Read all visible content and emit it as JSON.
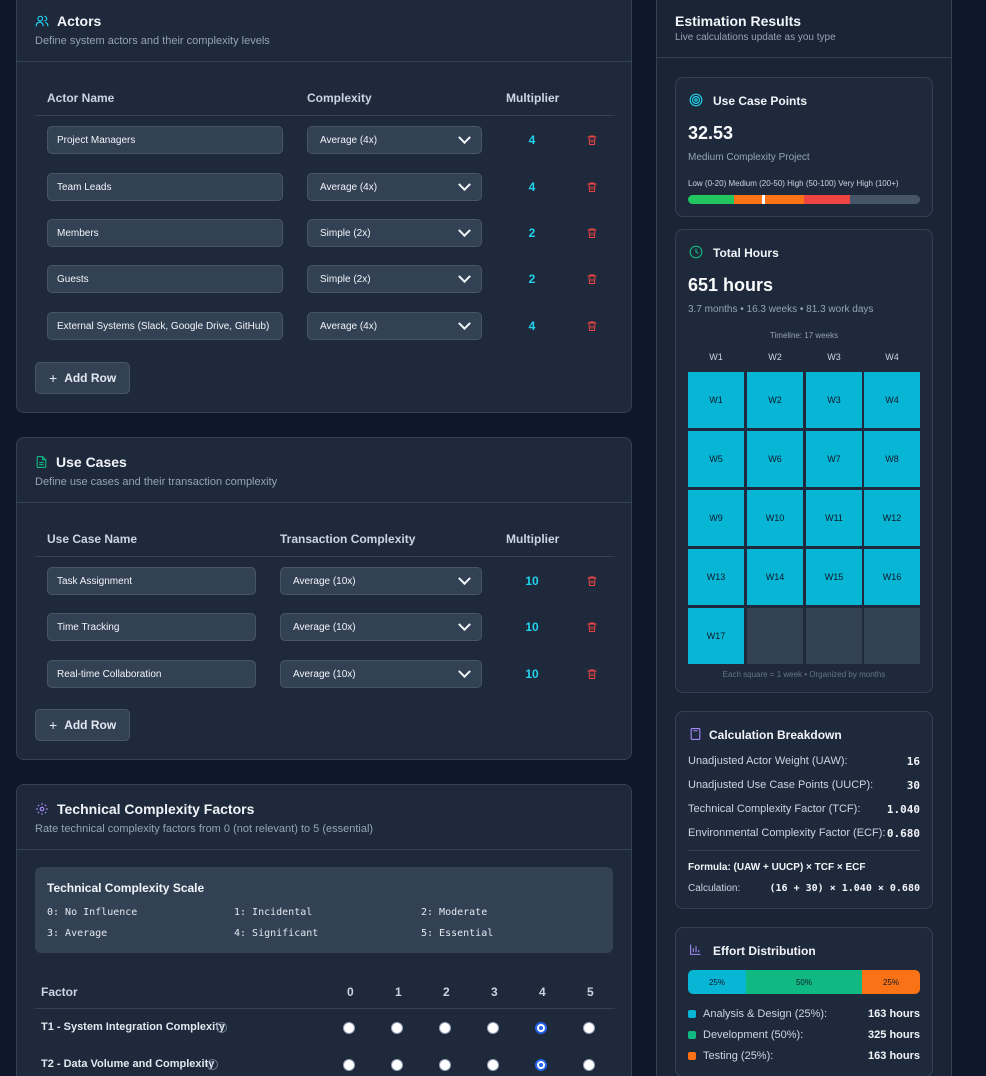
{
  "actors": {
    "title": "Actors",
    "subtitle": "Define system actors and their complexity levels",
    "headers": {
      "name": "Actor Name",
      "complexity": "Complexity",
      "multiplier": "Multiplier"
    },
    "rows": [
      {
        "name": "Project Managers",
        "complexity": "Average (4x)",
        "multiplier": "4"
      },
      {
        "name": "Team Leads",
        "complexity": "Average (4x)",
        "multiplier": "4"
      },
      {
        "name": "Members",
        "complexity": "Simple (2x)",
        "multiplier": "2"
      },
      {
        "name": "Guests",
        "complexity": "Simple (2x)",
        "multiplier": "2"
      },
      {
        "name": "External Systems (Slack, Google Drive, GitHub)",
        "complexity": "Average (4x)",
        "multiplier": "4"
      }
    ],
    "add_label": "Add Row"
  },
  "use_cases": {
    "title": "Use Cases",
    "subtitle": "Define use cases and their transaction complexity",
    "headers": {
      "name": "Use Case Name",
      "complexity": "Transaction Complexity",
      "multiplier": "Multiplier"
    },
    "rows": [
      {
        "name": "Task Assignment",
        "complexity": "Average (10x)",
        "multiplier": "10"
      },
      {
        "name": "Time Tracking",
        "complexity": "Average (10x)",
        "multiplier": "10"
      },
      {
        "name": "Real-time Collaboration",
        "complexity": "Average (10x)",
        "multiplier": "10"
      }
    ],
    "add_label": "Add Row"
  },
  "tcf": {
    "title": "Technical Complexity Factors",
    "subtitle": "Rate technical complexity factors from 0 (not relevant) to 5 (essential)",
    "scale_title": "Technical Complexity Scale",
    "scale": [
      "0: No Influence",
      "1: Incidental",
      "2: Moderate",
      "3: Average",
      "4: Significant",
      "5: Essential"
    ],
    "factor_header": "Factor",
    "columns": [
      "0",
      "1",
      "2",
      "3",
      "4",
      "5"
    ],
    "factors": [
      {
        "label": "T1 - System Integration Complexity",
        "selected": 4
      },
      {
        "label": "T2 - Data Volume and Complexity",
        "selected": 4
      }
    ]
  },
  "results": {
    "title": "Estimation Results",
    "subtitle": "Live calculations update as you type",
    "ucp": {
      "title": "Use Case Points",
      "value": "32.53",
      "label": "Medium Complexity Project",
      "legend": "Low (0-20) Medium (20-50) High (50-100) Very High (100+)",
      "marker_value": 32.53,
      "colors": {
        "low": "#22c55e",
        "medium": "#f97316",
        "high": "#ef4444",
        "very_high": "#475569"
      }
    },
    "hours": {
      "title": "Total Hours",
      "value": "651 hours",
      "detail": "3.7 months • 16.3 weeks • 81.3 work days",
      "timeline_label": "Timeline: 17 weeks",
      "col_headers": [
        "W1",
        "W2",
        "W3",
        "W4"
      ],
      "weeks": [
        "W1",
        "W2",
        "W3",
        "W4",
        "W5",
        "W6",
        "W7",
        "W8",
        "W9",
        "W10",
        "W11",
        "W12",
        "W13",
        "W14",
        "W15",
        "W16",
        "W17"
      ],
      "footnote": "Each square = 1 week • Organized by months"
    },
    "breakdown": {
      "title": "Calculation Breakdown",
      "rows": [
        {
          "label": "Unadjusted Actor Weight (UAW):",
          "value": "16"
        },
        {
          "label": "Unadjusted Use Case Points (UUCP):",
          "value": "30"
        },
        {
          "label": "Technical Complexity Factor (TCF):",
          "value": "1.040"
        },
        {
          "label": "Environmental Complexity Factor (ECF):",
          "value": "0.680"
        }
      ],
      "formula": "Formula: (UAW + UUCP) × TCF × ECF",
      "calc_label": "Calculation:",
      "calc_value": "(16 + 30) × 1.040 × 0.680"
    },
    "effort": {
      "title": "Effort Distribution",
      "segments": [
        {
          "label": "25%",
          "percent": 25,
          "color": "#06b6d4"
        },
        {
          "label": "50%",
          "percent": 50,
          "color": "#10b981"
        },
        {
          "label": "25%",
          "percent": 25,
          "color": "#f97316"
        }
      ],
      "items": [
        {
          "label": "Analysis & Design (25%):",
          "value": "163 hours",
          "color": "#06b6d4"
        },
        {
          "label": "Development (50%):",
          "value": "325 hours",
          "color": "#10b981"
        },
        {
          "label": "Testing (25%):",
          "value": "163 hours",
          "color": "#f97316"
        }
      ]
    }
  }
}
